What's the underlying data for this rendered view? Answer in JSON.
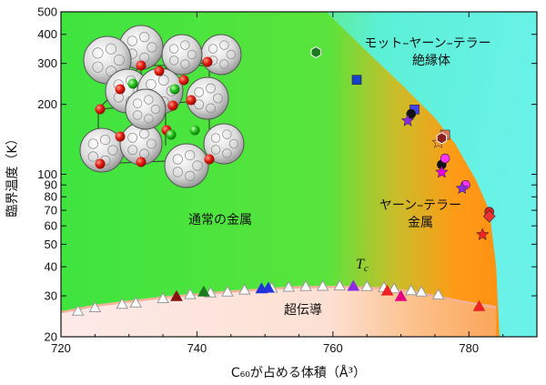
{
  "chart_data": {
    "type": "scatter",
    "title": "",
    "xlabel": "C₆₀が占める体積（Å³）",
    "ylabel": "臨界温度（K）",
    "xlim": [
      720,
      790
    ],
    "ylim": [
      20,
      500
    ],
    "y_scale": "log",
    "x_ticks": [
      720,
      740,
      760,
      780
    ],
    "y_ticks": [
      20,
      30,
      40,
      50,
      60,
      70,
      80,
      90,
      100,
      200,
      300,
      400,
      500
    ],
    "y_tick_labels": [
      "20",
      "30",
      "40",
      "50",
      "60",
      "70",
      "80",
      "90",
      "100",
      "200",
      "300",
      "400",
      "500"
    ],
    "grid": false,
    "region_labels": {
      "mott": [
        "モット–ヤーン–テラー",
        "絶縁体"
      ],
      "jt_metal": [
        "ヤーン–テラー",
        "金属"
      ],
      "normal_metal": "通常の金属",
      "superconductor": "超伝導",
      "tc": "T",
      "tc_sub": "c"
    },
    "boundaries": {
      "mott": [
        [
          759,
          500
        ],
        [
          764,
          360
        ],
        [
          770,
          245
        ],
        [
          775,
          175
        ],
        [
          778,
          135
        ],
        [
          781,
          95
        ],
        [
          783,
          70
        ],
        [
          784,
          40
        ],
        [
          784.5,
          20
        ]
      ],
      "sc_dome": [
        [
          720,
          25.5
        ],
        [
          725,
          27.2
        ],
        [
          735,
          29.5
        ],
        [
          745,
          31.3
        ],
        [
          755,
          32.7
        ],
        [
          762,
          32.8
        ],
        [
          767,
          32.3
        ],
        [
          772,
          31.2
        ],
        [
          776,
          29.5
        ],
        [
          780,
          28.0
        ],
        [
          784,
          26.8
        ]
      ]
    },
    "colors": {
      "green": "#3fe43f",
      "orange": "#ff8d12",
      "cyan": "#63f1e6",
      "sc_pink": "#fde4dc",
      "tc_line": "#f2b39a"
    },
    "series": [
      {
        "marker": "triangle-open",
        "color": "#b0b0b0",
        "points": [
          [
            722.5,
            25.8
          ],
          [
            725,
            26.7
          ],
          [
            729,
            27.6
          ],
          [
            731,
            28.0
          ],
          [
            735,
            29.2
          ],
          [
            739,
            30.4
          ],
          [
            742,
            30.9
          ],
          [
            744.5,
            31.2
          ],
          [
            747,
            31.8
          ],
          [
            751,
            32.4
          ],
          [
            753.5,
            32.7
          ],
          [
            756,
            32.9
          ],
          [
            758.5,
            33.0
          ],
          [
            761,
            33.1
          ],
          [
            765,
            32.9
          ],
          [
            767.5,
            32.6
          ],
          [
            769,
            32.2
          ],
          [
            771.5,
            31.6
          ],
          [
            773,
            31.2
          ],
          [
            775.5,
            30.3
          ]
        ]
      },
      {
        "marker": "triangle",
        "color": "#8b1010",
        "points": [
          [
            737,
            29.8
          ]
        ]
      },
      {
        "marker": "triangle",
        "color": "#1e7a1e",
        "points": [
          [
            741,
            31.2
          ]
        ]
      },
      {
        "marker": "triangle",
        "color": "#2233dd",
        "points": [
          [
            749.5,
            32.2
          ],
          [
            750.5,
            32.4
          ]
        ]
      },
      {
        "marker": "triangle",
        "color": "#8a2be2",
        "points": [
          [
            763,
            33.0
          ]
        ]
      },
      {
        "marker": "triangle",
        "color": "#e6007e",
        "points": [
          [
            770,
            29.8
          ]
        ]
      },
      {
        "marker": "triangle",
        "color": "#ee2222",
        "points": [
          [
            768,
            31.5
          ],
          [
            781.5,
            27.0
          ]
        ]
      },
      {
        "marker": "hexagon",
        "color": "#1e7a1e",
        "points": [
          [
            757.5,
            335
          ]
        ]
      },
      {
        "marker": "square",
        "color": "#1740cc",
        "points": [
          [
            763.5,
            255
          ]
        ]
      },
      {
        "marker": "square",
        "color": "#4444ee",
        "points": [
          [
            772,
            190
          ]
        ]
      },
      {
        "marker": "circle",
        "color": "#111111",
        "points": [
          [
            771.5,
            182
          ],
          [
            776,
            110
          ]
        ]
      },
      {
        "marker": "star",
        "color": "#8a2be2",
        "points": [
          [
            771,
            170
          ]
        ]
      },
      {
        "marker": "square",
        "color": "#dd7755",
        "points": [
          [
            776.5,
            148
          ]
        ]
      },
      {
        "marker": "star",
        "color": "#ee9933",
        "points": [
          [
            775.5,
            137
          ]
        ]
      },
      {
        "marker": "hexagon",
        "color": "#8b2222",
        "points": [
          [
            776,
            143
          ]
        ]
      },
      {
        "marker": "circle",
        "color": "#ff33ff",
        "points": [
          [
            776.5,
            117
          ],
          [
            779.5,
            90
          ]
        ]
      },
      {
        "marker": "star",
        "color": "#e600e6",
        "points": [
          [
            776,
            102
          ]
        ]
      },
      {
        "marker": "star",
        "color": "#8a2be2",
        "points": [
          [
            779,
            87
          ]
        ]
      },
      {
        "marker": "circle",
        "color": "#dd2222",
        "points": [
          [
            783,
            69
          ]
        ]
      },
      {
        "marker": "diamond",
        "color": "#ee3333",
        "points": [
          [
            783,
            66
          ]
        ]
      },
      {
        "marker": "star",
        "color": "#ee2222",
        "points": [
          [
            782,
            55
          ]
        ]
      }
    ]
  }
}
